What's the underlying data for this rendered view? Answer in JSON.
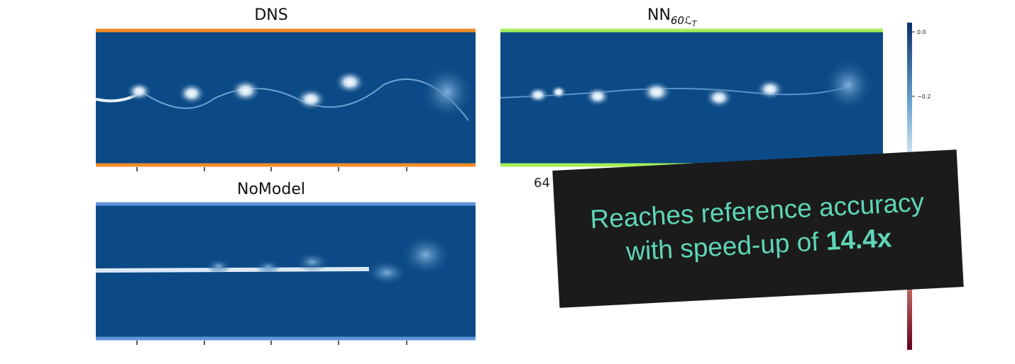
{
  "panels": [
    {
      "title": "DNS"
    },
    {
      "title": "NN",
      "subscript": "60ℒ",
      "subsubscript": "T",
      "tick_label": "64"
    },
    {
      "title": "NoModel"
    }
  ],
  "colorbar": {
    "tick_labels": [
      "0.0",
      "−0.2"
    ]
  },
  "overlay": {
    "line1": "Reaches reference accuracy",
    "line2": "with speed-up of ",
    "highlight": "14.4x"
  }
}
